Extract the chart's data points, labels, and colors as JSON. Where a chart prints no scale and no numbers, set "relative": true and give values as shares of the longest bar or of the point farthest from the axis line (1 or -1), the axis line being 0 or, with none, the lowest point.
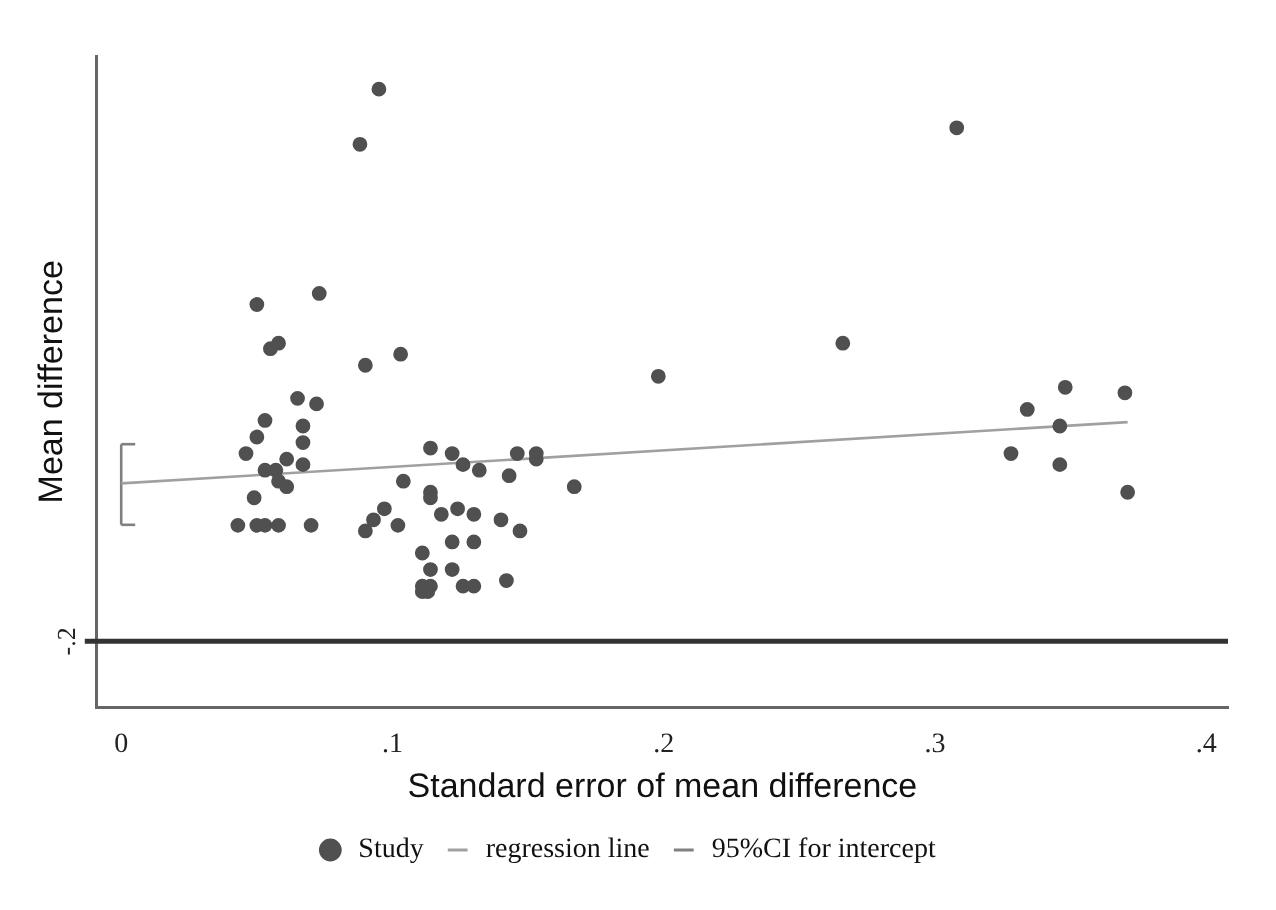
{
  "chart_data": {
    "type": "scatter",
    "xlabel": "Standard error of mean difference",
    "ylabel": "Mean difference",
    "relative": true,
    "xlim": [
      -0.009,
      0.408
    ],
    "xticks": [
      0,
      {
        "value": 0.1,
        "label": ".1"
      },
      {
        "value": 0.2,
        "label": ".2"
      },
      {
        "value": 0.3,
        "label": ".3"
      },
      {
        "value": 0.4,
        "label": ".4"
      }
    ],
    "grid": false,
    "legend": "bottom",
    "ref_lines": [
      {
        "axis": "y",
        "value": 0,
        "color": "#333333"
      }
    ],
    "annotations": [
      "-.2"
    ],
    "series": [
      {
        "name": "Study",
        "type": "scatter",
        "color": "#505050",
        "marker": "circle",
        "x": [
          0.095,
          0.088,
          0.05,
          0.073,
          0.055,
          0.058,
          0.09,
          0.103,
          0.065,
          0.072,
          0.053,
          0.067,
          0.05,
          0.067,
          0.046,
          0.114,
          0.122,
          0.126,
          0.132,
          0.146,
          0.153,
          0.153,
          0.053,
          0.061,
          0.057,
          0.067,
          0.058,
          0.061,
          0.104,
          0.143,
          0.049,
          0.114,
          0.114,
          0.167,
          0.043,
          0.05,
          0.053,
          0.058,
          0.07,
          0.09,
          0.093,
          0.097,
          0.102,
          0.118,
          0.124,
          0.13,
          0.14,
          0.147,
          0.111,
          0.122,
          0.13,
          0.114,
          0.122,
          0.111,
          0.114,
          0.113,
          0.111,
          0.126,
          0.13,
          0.142,
          0.198,
          0.266,
          0.308,
          0.334,
          0.348,
          0.37,
          0.346,
          0.328,
          0.346,
          0.371
        ],
        "values": [
          1,
          0.9,
          0.61,
          0.63,
          0.53,
          0.54,
          0.5,
          0.52,
          0.44,
          0.43,
          0.4,
          0.39,
          0.37,
          0.36,
          0.34,
          0.35,
          0.34,
          0.32,
          0.31,
          0.34,
          0.34,
          0.33,
          0.31,
          0.33,
          0.31,
          0.32,
          0.29,
          0.28,
          0.29,
          0.3,
          0.26,
          0.27,
          0.26,
          0.28,
          0.21,
          0.21,
          0.21,
          0.21,
          0.21,
          0.2,
          0.22,
          0.24,
          0.21,
          0.23,
          0.24,
          0.23,
          0.22,
          0.2,
          0.16,
          0.18,
          0.18,
          0.13,
          0.13,
          0.1,
          0.1,
          0.09,
          0.09,
          0.1,
          0.1,
          0.11,
          0.48,
          0.54,
          0.93,
          0.42,
          0.46,
          0.45,
          0.39,
          0.34,
          0.32,
          0.27
        ]
      },
      {
        "name": "regression line",
        "type": "line",
        "color": "#a0a0a0",
        "marker": "none",
        "line_style": "solid",
        "x": [
          0,
          0.371
        ],
        "values": [
          0.286,
          0.397
        ]
      },
      {
        "name": "95%CI for intercept",
        "type": "line",
        "color": "#808080",
        "marker": "none",
        "line_style": "solid",
        "x": [
          0,
          0
        ],
        "values": [
          0.211,
          0.357
        ]
      }
    ]
  }
}
